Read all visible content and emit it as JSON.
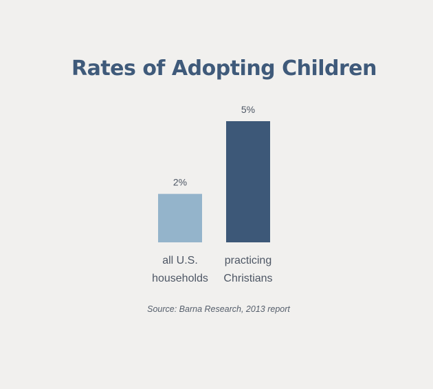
{
  "chart_data": {
    "type": "bar",
    "title": "Rates of Adopting Children",
    "categories": [
      [
        "all U.S.",
        "households"
      ],
      [
        "practicing",
        "Christians"
      ]
    ],
    "values": [
      2,
      5
    ],
    "value_labels": [
      "2%",
      "5%"
    ],
    "colors": [
      "#94b4cb",
      "#3d5878"
    ],
    "ylim": [
      0,
      5
    ],
    "grid": false,
    "legend": "none",
    "source": "Source: Barna Research, 2013 report"
  }
}
